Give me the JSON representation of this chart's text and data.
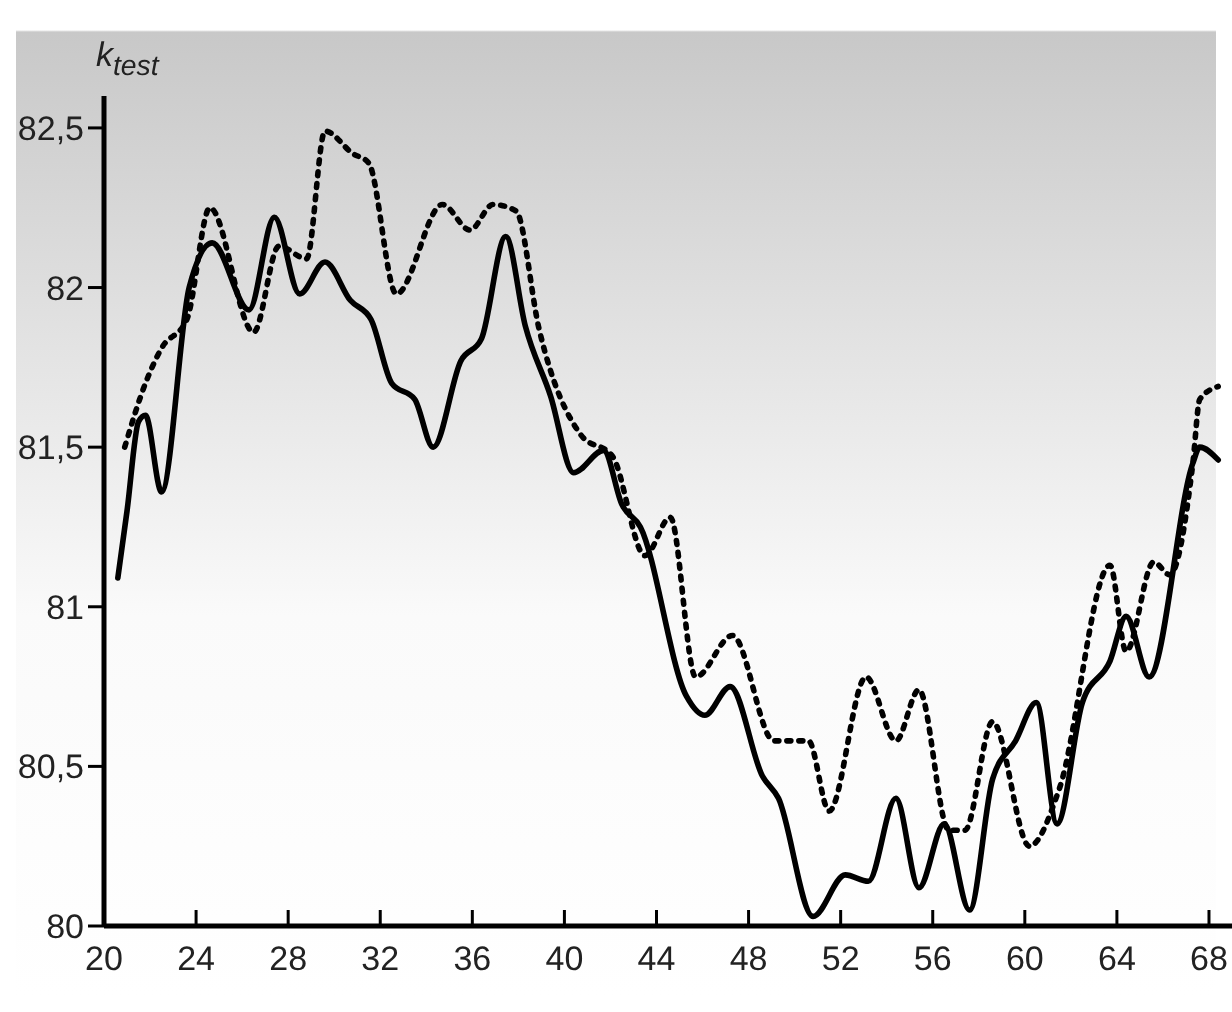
{
  "chart_data": {
    "type": "line",
    "ylabel": "k$_{test}$",
    "xlim": [
      20,
      69
    ],
    "xticks": [
      20,
      24,
      28,
      32,
      36,
      40,
      44,
      48,
      52,
      56,
      60,
      64,
      68
    ],
    "ylim": [
      80,
      82.6
    ],
    "yticks": [
      {
        "value": 80,
        "label": "80"
      },
      {
        "value": 80.5,
        "label": "80,5"
      },
      {
        "value": 81,
        "label": "81"
      },
      {
        "value": 81.5,
        "label": "81,5"
      },
      {
        "value": 82,
        "label": "82"
      },
      {
        "value": 82.5,
        "label": "82,5"
      }
    ],
    "grid": false,
    "legend": false,
    "marker": "none",
    "series": [
      {
        "color": "#000000",
        "line_style": "solid",
        "x": [
          20.6,
          21,
          21.5,
          21.8,
          22.5,
          23.7,
          24.7,
          26.3,
          27.4,
          28.5,
          29.6,
          30.7,
          31.6,
          32.5,
          33.5,
          34.3,
          35.5,
          36.4,
          37.45,
          38.3,
          39.4,
          40.4,
          41.7,
          42.5,
          43.3,
          45.3,
          46.1,
          47.2,
          48.6,
          49.3,
          50.8,
          52.2,
          53.2,
          54.4,
          55.4,
          56.5,
          57.6,
          58.6,
          59.6,
          60.5,
          61.4,
          62.5,
          63.7,
          64.4,
          65.4,
          67.3,
          67.6,
          68.4
        ],
        "values": [
          81.09,
          81.3,
          81.58,
          81.6,
          81.36,
          82.0,
          82.14,
          81.93,
          82.22,
          81.98,
          82.08,
          81.96,
          81.9,
          81.7,
          81.65,
          81.5,
          81.77,
          81.84,
          82.16,
          81.88,
          81.66,
          81.42,
          81.49,
          81.32,
          81.25,
          80.72,
          80.66,
          80.75,
          80.47,
          80.4,
          80.03,
          80.16,
          80.14,
          80.4,
          80.12,
          80.32,
          80.05,
          80.46,
          80.58,
          80.7,
          80.32,
          80.7,
          80.83,
          80.97,
          80.78,
          81.45,
          81.5,
          81.46
        ]
      },
      {
        "color": "#000000",
        "line_style": "dotted",
        "x": [
          20.9,
          21.8,
          22.5,
          23.6,
          24.6,
          26.5,
          27.6,
          28.8,
          29.6,
          30.8,
          31.5,
          32.7,
          34.7,
          35.9,
          36.9,
          37.9,
          38.9,
          40.7,
          42.1,
          43.5,
          44.6,
          45.7,
          47.3,
          49.1,
          50.6,
          51.5,
          53.1,
          54.4,
          55.4,
          56.7,
          57.4,
          58.6,
          60.2,
          61.5,
          63.7,
          64.4,
          65.6,
          66.3,
          67.3,
          67.6,
          68.4
        ],
        "values": [
          81.5,
          81.7,
          81.81,
          81.9,
          82.25,
          81.86,
          82.13,
          82.09,
          82.49,
          82.42,
          82.39,
          81.98,
          82.26,
          82.18,
          82.26,
          82.24,
          81.87,
          81.54,
          81.47,
          81.16,
          81.28,
          80.78,
          80.91,
          80.58,
          80.58,
          80.36,
          80.78,
          80.58,
          80.74,
          80.3,
          80.3,
          80.64,
          80.25,
          80.43,
          81.13,
          80.86,
          81.14,
          81.1,
          81.45,
          81.65,
          81.69
        ]
      }
    ]
  }
}
